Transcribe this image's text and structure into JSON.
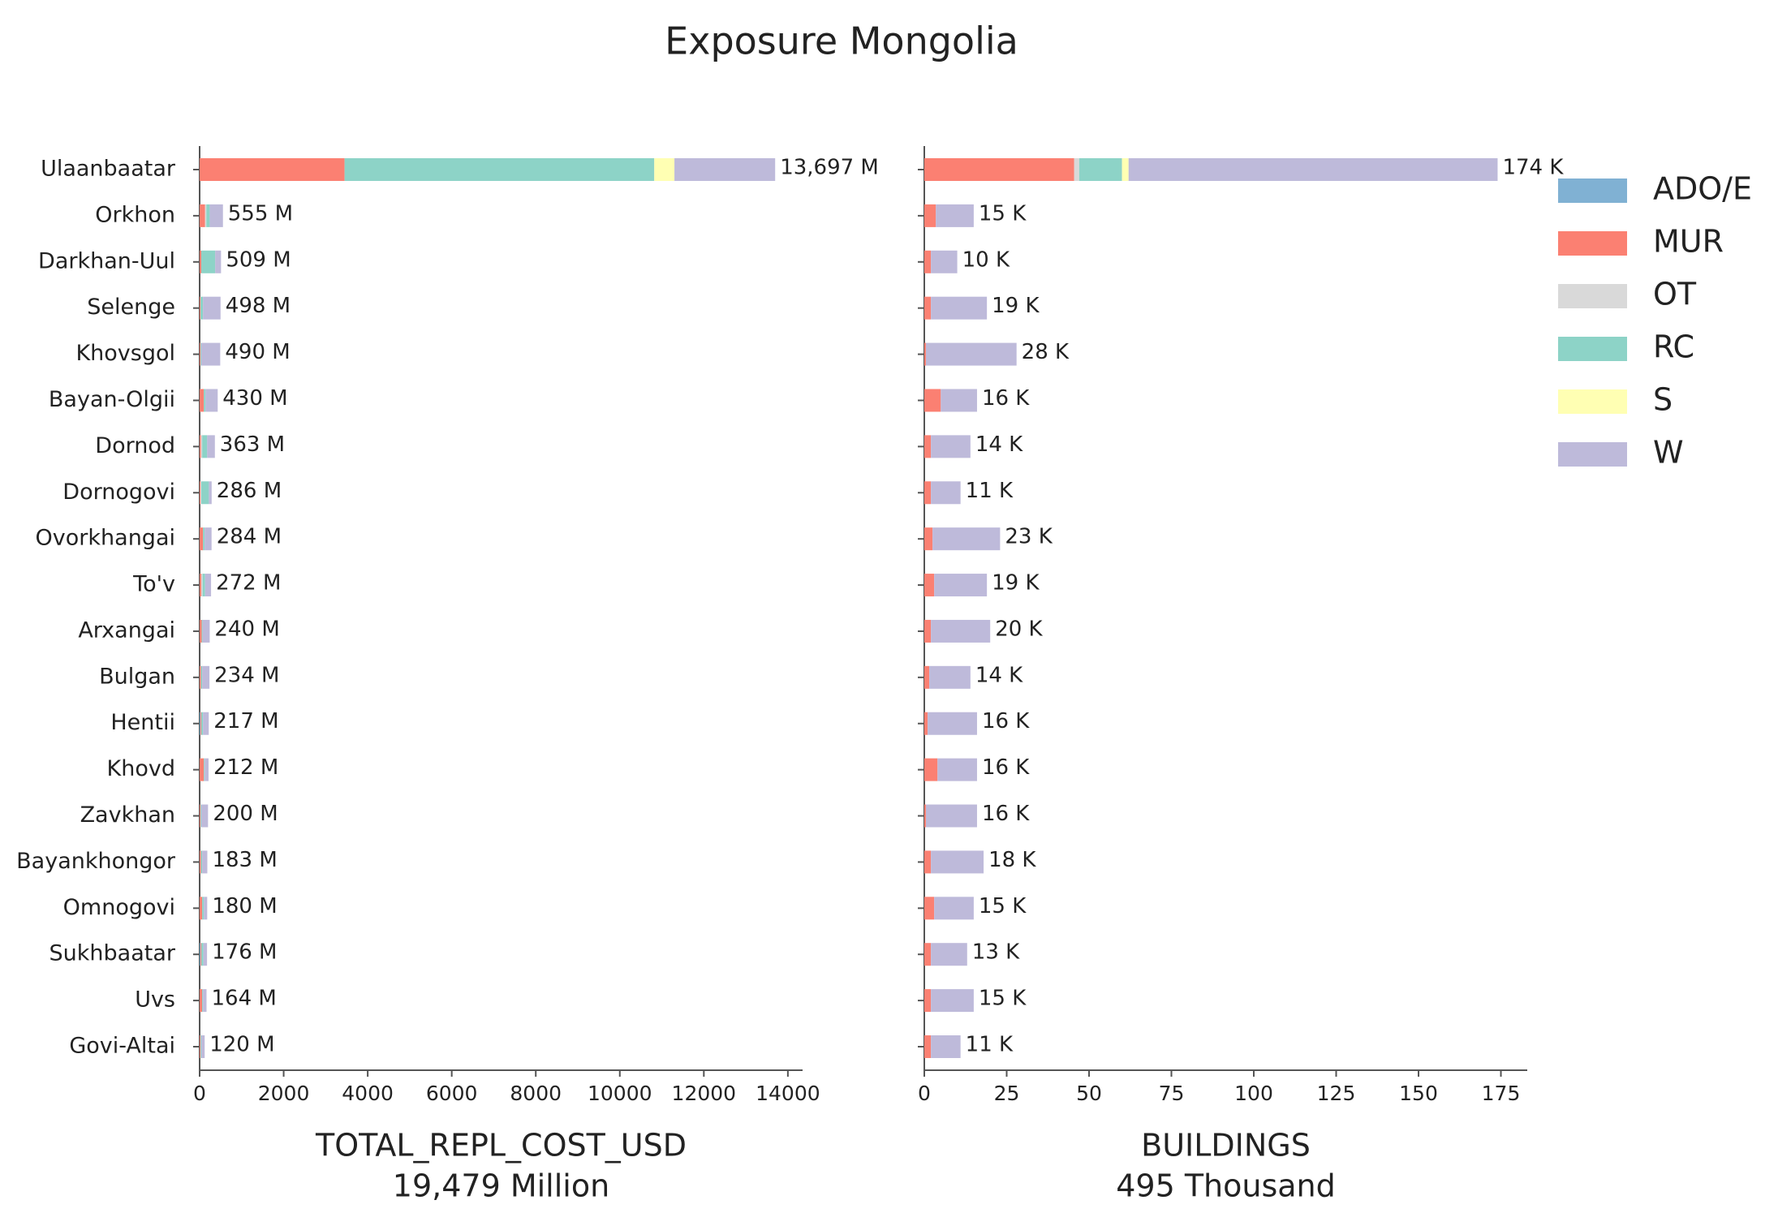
{
  "title": "Exposure Mongolia",
  "chart_data": [
    {
      "type": "bar",
      "orientation": "horizontal",
      "xlabel": "TOTAL_REPL_COST_USD",
      "xlabel_sub": "19,479 Million",
      "categories": [
        "Ulaanbaatar",
        "Orkhon",
        "Darkhan-Uul",
        "Selenge",
        "Khovsgol",
        "Bayan-Olgii",
        "Dornod",
        "Dornogovi",
        "Ovorkhangai",
        "To'v",
        "Arxangai",
        "Bulgan",
        "Hentii",
        "Khovd",
        "Zavkhan",
        "Bayankhongor",
        "Omnogovi",
        "Sukhbaatar",
        "Uvs",
        "Govi-Altai"
      ],
      "series": [
        {
          "name": "ADO/E",
          "color": "#80b1d3",
          "values": [
            0,
            0,
            0,
            0,
            0,
            0,
            0,
            0,
            0,
            0,
            0,
            0,
            20,
            0,
            0,
            0,
            0,
            20,
            0,
            0
          ]
        },
        {
          "name": "MUR",
          "color": "#fb8072",
          "values": [
            3450,
            130,
            40,
            20,
            20,
            100,
            30,
            20,
            80,
            40,
            50,
            30,
            20,
            100,
            20,
            30,
            60,
            20,
            60,
            20
          ]
        },
        {
          "name": "OT",
          "color": "#d9d9d9",
          "values": [
            0,
            30,
            0,
            0,
            0,
            0,
            30,
            20,
            0,
            30,
            0,
            0,
            0,
            0,
            0,
            0,
            0,
            0,
            0,
            0
          ]
        },
        {
          "name": "RC",
          "color": "#8dd3c7",
          "values": [
            7370,
            80,
            330,
            60,
            20,
            40,
            120,
            180,
            40,
            60,
            20,
            30,
            40,
            20,
            20,
            30,
            40,
            50,
            20,
            20
          ]
        },
        {
          "name": "S",
          "color": "#ffffb3",
          "values": [
            480,
            0,
            0,
            0,
            0,
            0,
            0,
            0,
            0,
            0,
            0,
            0,
            0,
            0,
            0,
            0,
            0,
            0,
            0,
            0
          ]
        },
        {
          "name": "W",
          "color": "#bebada",
          "values": [
            2397,
            315,
            139,
            418,
            450,
            290,
            183,
            66,
            164,
            142,
            170,
            174,
            137,
            92,
            160,
            123,
            80,
            86,
            84,
            80
          ]
        }
      ],
      "totals": [
        13697,
        555,
        509,
        498,
        490,
        430,
        363,
        286,
        284,
        272,
        240,
        234,
        217,
        212,
        200,
        183,
        180,
        176,
        164,
        120
      ],
      "value_labels": [
        "13,697 M",
        "555 M",
        "509 M",
        "498 M",
        "490 M",
        "430 M",
        "363 M",
        "286 M",
        "284 M",
        "272 M",
        "240 M",
        "234 M",
        "217 M",
        "212 M",
        "200 M",
        "183 M",
        "180 M",
        "176 M",
        "164 M",
        "120 M"
      ],
      "xlim": [
        0,
        14350
      ],
      "xticks": [
        0,
        2000,
        4000,
        6000,
        8000,
        10000,
        12000,
        14000
      ]
    },
    {
      "type": "bar",
      "orientation": "horizontal",
      "xlabel": "BUILDINGS",
      "xlabel_sub": "495 Thousand",
      "series": [
        {
          "values": [
            0,
            0,
            0,
            0,
            0,
            0,
            0,
            0,
            0,
            0,
            0,
            0,
            0,
            0,
            0,
            0,
            0,
            0,
            0,
            0
          ]
        },
        {
          "values": [
            45.5,
            3.5,
            2,
            2,
            0.5,
            5,
            2,
            2,
            2.5,
            3,
            2,
            1.5,
            1,
            4,
            0.5,
            2,
            3,
            2,
            2,
            2
          ]
        },
        {
          "values": [
            1.5,
            0,
            0,
            0,
            0,
            0,
            0,
            0,
            0,
            0,
            0,
            0,
            0,
            0,
            0,
            0,
            0,
            0,
            0,
            0
          ]
        },
        {
          "values": [
            13,
            0,
            0,
            0,
            0,
            0,
            0,
            0,
            0,
            0,
            0,
            0,
            0,
            0,
            0,
            0,
            0,
            0,
            0,
            0
          ]
        },
        {
          "values": [
            2,
            0,
            0,
            0,
            0,
            0,
            0,
            0,
            0,
            0,
            0,
            0,
            0,
            0,
            0,
            0,
            0,
            0,
            0,
            0
          ]
        },
        {
          "values": [
            112,
            11.5,
            8,
            17,
            27.5,
            11,
            12,
            9,
            20.5,
            16,
            18,
            12.5,
            15,
            12,
            15.5,
            16,
            12,
            11,
            13,
            9
          ]
        }
      ],
      "totals": [
        174,
        15,
        10,
        19,
        28,
        16,
        14,
        11,
        23,
        19,
        20,
        14,
        16,
        16,
        16,
        18,
        15,
        13,
        15,
        11
      ],
      "value_labels": [
        "174 K",
        "15 K",
        "10 K",
        "19 K",
        "28 K",
        "16 K",
        "14 K",
        "11 K",
        "23 K",
        "19 K",
        "20 K",
        "14 K",
        "16 K",
        "16 K",
        "16 K",
        "18 K",
        "15 K",
        "13 K",
        "15 K",
        "11 K"
      ],
      "xlim": [
        0,
        183
      ],
      "xticks": [
        0,
        25,
        50,
        75,
        100,
        125,
        150,
        175
      ]
    }
  ]
}
